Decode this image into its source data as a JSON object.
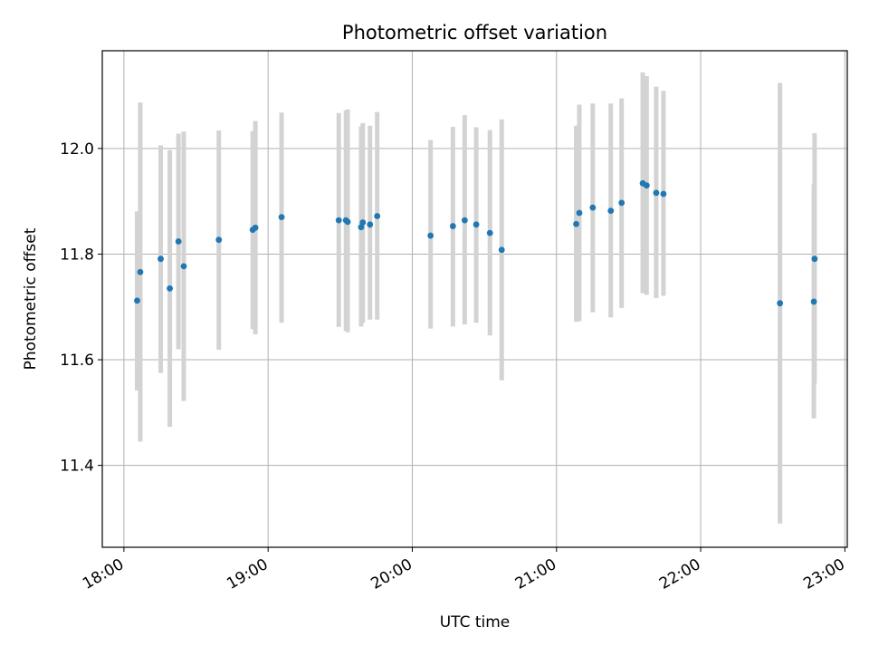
{
  "chart_data": {
    "type": "scatter",
    "title": "Photometric offset variation",
    "xlabel": "UTC time",
    "ylabel": "Photometric offset",
    "x_ticks": [
      "18:00",
      "19:00",
      "20:00",
      "21:00",
      "22:00",
      "23:00"
    ],
    "y_ticks": [
      "11.4",
      "11.6",
      "11.8",
      "12.0"
    ],
    "xlim": [
      "17:51",
      "23:01"
    ],
    "ylim": [
      11.245,
      12.185
    ],
    "grid": true,
    "series": [
      {
        "marker_color": "#1f77b4",
        "errorbar_color": "#d3d3d3",
        "points": [
          {
            "x": "18:05.5",
            "y": 11.712,
            "y_low": 11.542,
            "y_high": 11.881
          },
          {
            "x": "18:06.8",
            "y": 11.766,
            "y_low": 11.445,
            "y_high": 12.087
          },
          {
            "x": "18:15.3",
            "y": 11.791,
            "y_low": 11.575,
            "y_high": 12.006
          },
          {
            "x": "18:19.1",
            "y": 11.735,
            "y_low": 11.473,
            "y_high": 11.997
          },
          {
            "x": "18:22.7",
            "y": 11.824,
            "y_low": 11.62,
            "y_high": 12.028
          },
          {
            "x": "18:24.9",
            "y": 11.777,
            "y_low": 11.522,
            "y_high": 12.032
          },
          {
            "x": "18:39.5",
            "y": 11.827,
            "y_low": 11.619,
            "y_high": 12.034
          },
          {
            "x": "18:53.6",
            "y": 11.846,
            "y_low": 11.658,
            "y_high": 12.033
          },
          {
            "x": "18:54.7",
            "y": 11.85,
            "y_low": 11.648,
            "y_high": 12.052
          },
          {
            "x": "19:05.6",
            "y": 11.87,
            "y_low": 11.67,
            "y_high": 12.068
          },
          {
            "x": "19:29.4",
            "y": 11.864,
            "y_low": 11.662,
            "y_high": 12.067
          },
          {
            "x": "19:32.4",
            "y": 11.864,
            "y_low": 11.655,
            "y_high": 12.072
          },
          {
            "x": "19:33.1",
            "y": 11.861,
            "y_low": 11.652,
            "y_high": 12.074
          },
          {
            "x": "19:38.7",
            "y": 11.851,
            "y_low": 11.663,
            "y_high": 12.042
          },
          {
            "x": "19:39.4",
            "y": 11.86,
            "y_low": 11.67,
            "y_high": 12.048
          },
          {
            "x": "19:42.4",
            "y": 11.856,
            "y_low": 11.676,
            "y_high": 12.043
          },
          {
            "x": "19:45.4",
            "y": 11.872,
            "y_low": 11.676,
            "y_high": 12.069
          },
          {
            "x": "20:07.6",
            "y": 11.835,
            "y_low": 11.659,
            "y_high": 12.016
          },
          {
            "x": "20:16.9",
            "y": 11.853,
            "y_low": 11.663,
            "y_high": 12.041
          },
          {
            "x": "20:21.8",
            "y": 11.864,
            "y_low": 11.667,
            "y_high": 12.063
          },
          {
            "x": "20:26.6",
            "y": 11.856,
            "y_low": 11.67,
            "y_high": 12.04
          },
          {
            "x": "20:32.3",
            "y": 11.84,
            "y_low": 11.646,
            "y_high": 12.035
          },
          {
            "x": "20:37.2",
            "y": 11.808,
            "y_low": 11.561,
            "y_high": 12.055
          },
          {
            "x": "21:08.2",
            "y": 11.857,
            "y_low": 11.672,
            "y_high": 12.043
          },
          {
            "x": "21:09.5",
            "y": 11.878,
            "y_low": 11.673,
            "y_high": 12.083
          },
          {
            "x": "21:15.1",
            "y": 11.888,
            "y_low": 11.69,
            "y_high": 12.085
          },
          {
            "x": "21:22.6",
            "y": 11.882,
            "y_low": 11.68,
            "y_high": 12.085
          },
          {
            "x": "21:27.1",
            "y": 11.897,
            "y_low": 11.698,
            "y_high": 12.095
          },
          {
            "x": "21:35.9",
            "y": 11.934,
            "y_low": 11.726,
            "y_high": 12.144
          },
          {
            "x": "21:37.5",
            "y": 11.93,
            "y_low": 11.723,
            "y_high": 12.137
          },
          {
            "x": "21:41.5",
            "y": 11.916,
            "y_low": 11.717,
            "y_high": 12.117
          },
          {
            "x": "21:44.5",
            "y": 11.914,
            "y_low": 11.721,
            "y_high": 12.109
          },
          {
            "x": "22:33.0",
            "y": 11.707,
            "y_low": 11.29,
            "y_high": 12.124
          },
          {
            "x": "22:47.1",
            "y": 11.71,
            "y_low": 11.489,
            "y_high": 11.932
          },
          {
            "x": "22:47.4",
            "y": 11.791,
            "y_low": 11.555,
            "y_high": 12.029
          }
        ]
      }
    ]
  }
}
